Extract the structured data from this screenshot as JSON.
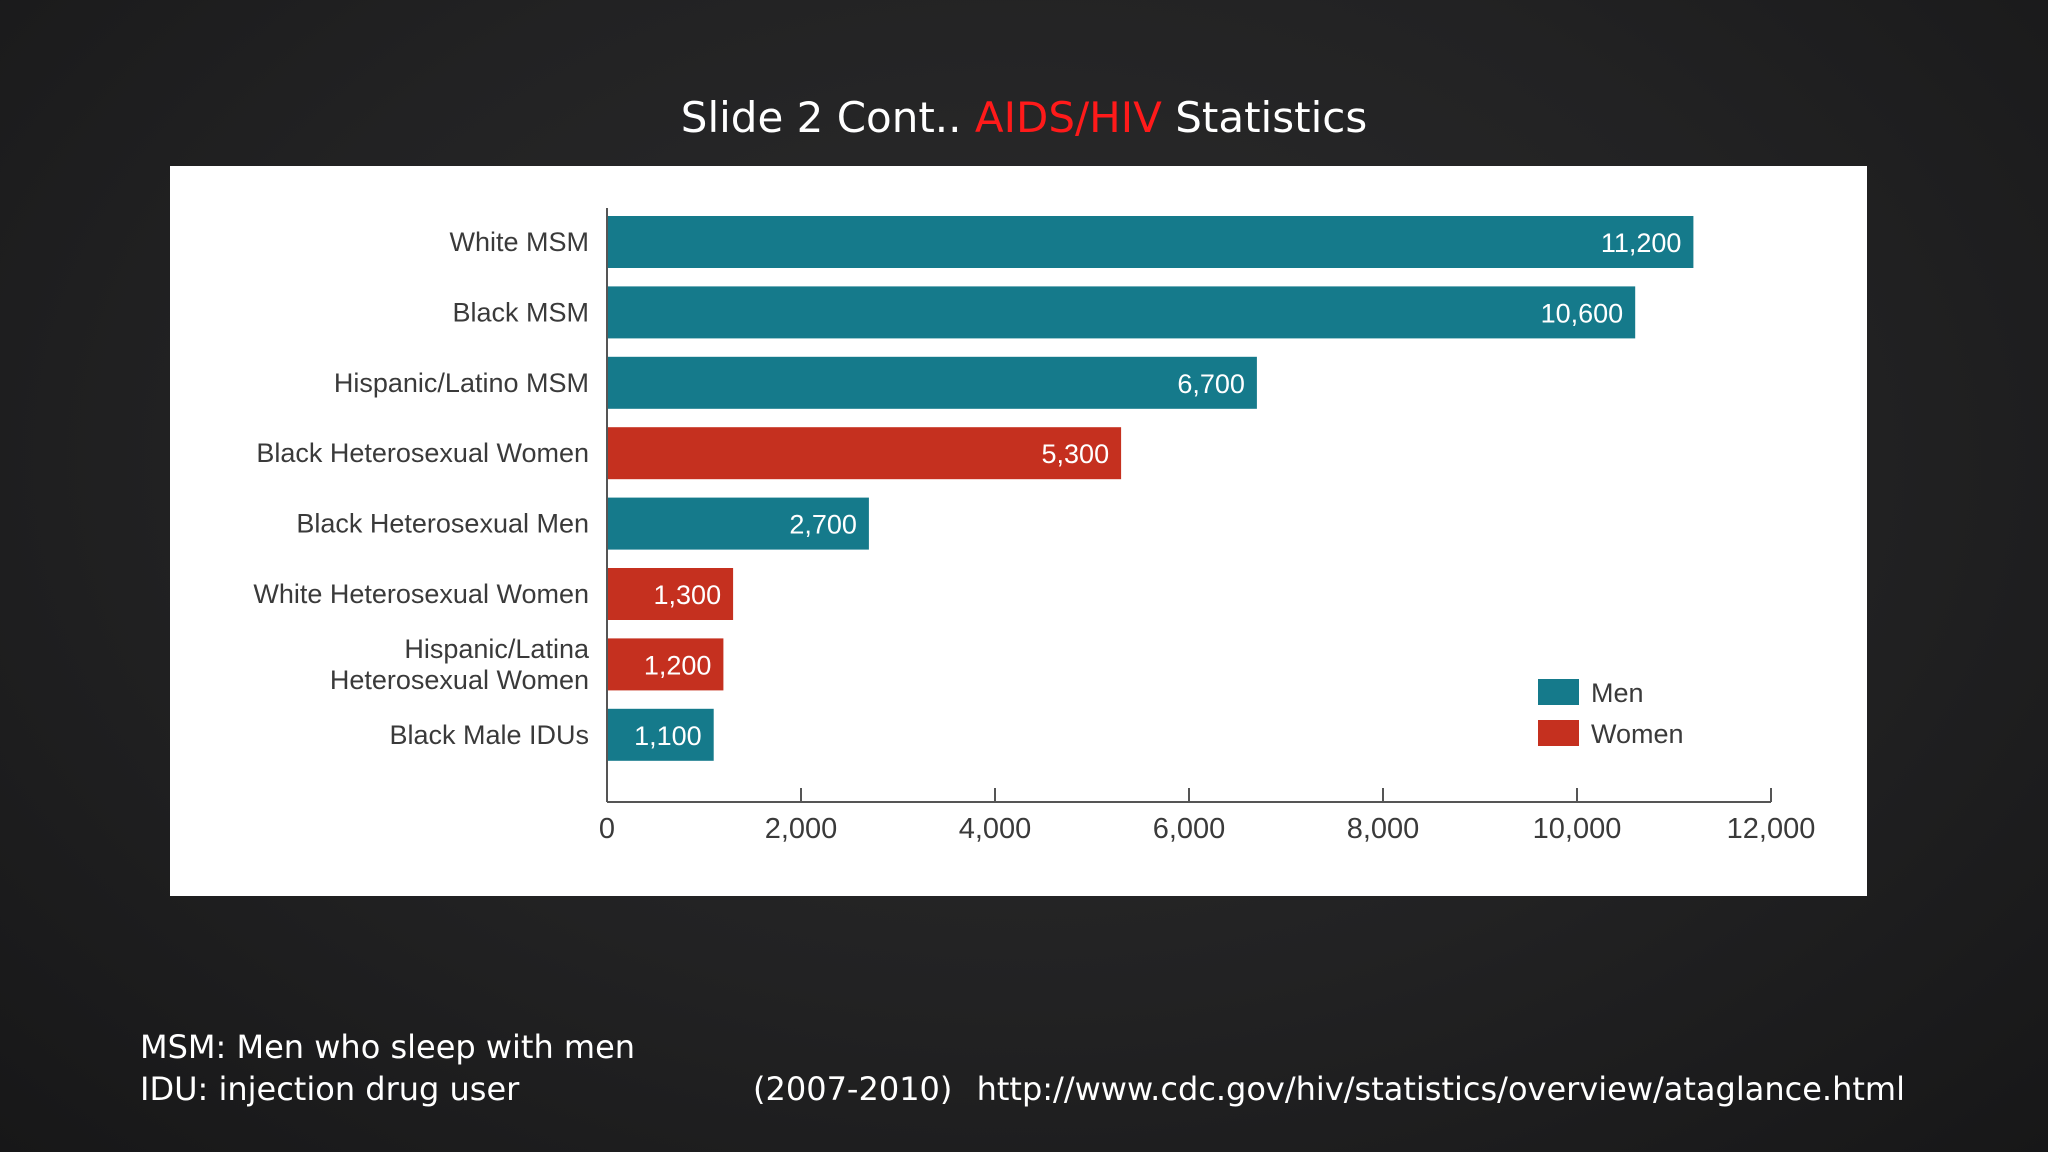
{
  "slide": {
    "title_prefix": "Slide 2 Cont..",
    "title_accent": "AIDS/HIV",
    "title_suffix": "Statistics"
  },
  "footnotes": [
    "MSM: Men who sleep with men",
    "IDU: injection drug user"
  ],
  "source": {
    "period": "(2007-2010)",
    "url": "http://www.cdc.gov/hiv/statistics/overview/ataglance.html"
  },
  "colors": {
    "men": "#157a8b",
    "women": "#c5301f",
    "title_accent": "#ff1a1a"
  },
  "chart_data": {
    "type": "bar",
    "orientation": "horizontal",
    "title": "",
    "xlabel": "",
    "ylabel": "",
    "xlim": [
      0,
      12000
    ],
    "ticks": [
      0,
      2000,
      4000,
      6000,
      8000,
      10000,
      12000
    ],
    "tick_labels": [
      "0",
      "2,000",
      "4,000",
      "6,000",
      "8,000",
      "10,000",
      "12,000"
    ],
    "grid": false,
    "legend": {
      "position": "bottom-right",
      "entries": [
        {
          "name": "Men",
          "color": "#157a8b"
        },
        {
          "name": "Women",
          "color": "#c5301f"
        }
      ]
    },
    "bars": [
      {
        "category": [
          "White MSM"
        ],
        "value": 11200,
        "label": "11,200",
        "group": "Men"
      },
      {
        "category": [
          "Black MSM"
        ],
        "value": 10600,
        "label": "10,600",
        "group": "Men"
      },
      {
        "category": [
          "Hispanic/Latino MSM"
        ],
        "value": 6700,
        "label": "6,700",
        "group": "Men"
      },
      {
        "category": [
          "Black Heterosexual Women"
        ],
        "value": 5300,
        "label": "5,300",
        "group": "Women"
      },
      {
        "category": [
          "Black Heterosexual Men"
        ],
        "value": 2700,
        "label": "2,700",
        "group": "Men"
      },
      {
        "category": [
          "White Heterosexual Women"
        ],
        "value": 1300,
        "label": "1,300",
        "group": "Women"
      },
      {
        "category": [
          "Hispanic/Latina",
          "Heterosexual Women"
        ],
        "value": 1200,
        "label": "1,200",
        "group": "Women"
      },
      {
        "category": [
          "Black Male IDUs"
        ],
        "value": 1100,
        "label": "1,100",
        "group": "Men"
      }
    ]
  }
}
